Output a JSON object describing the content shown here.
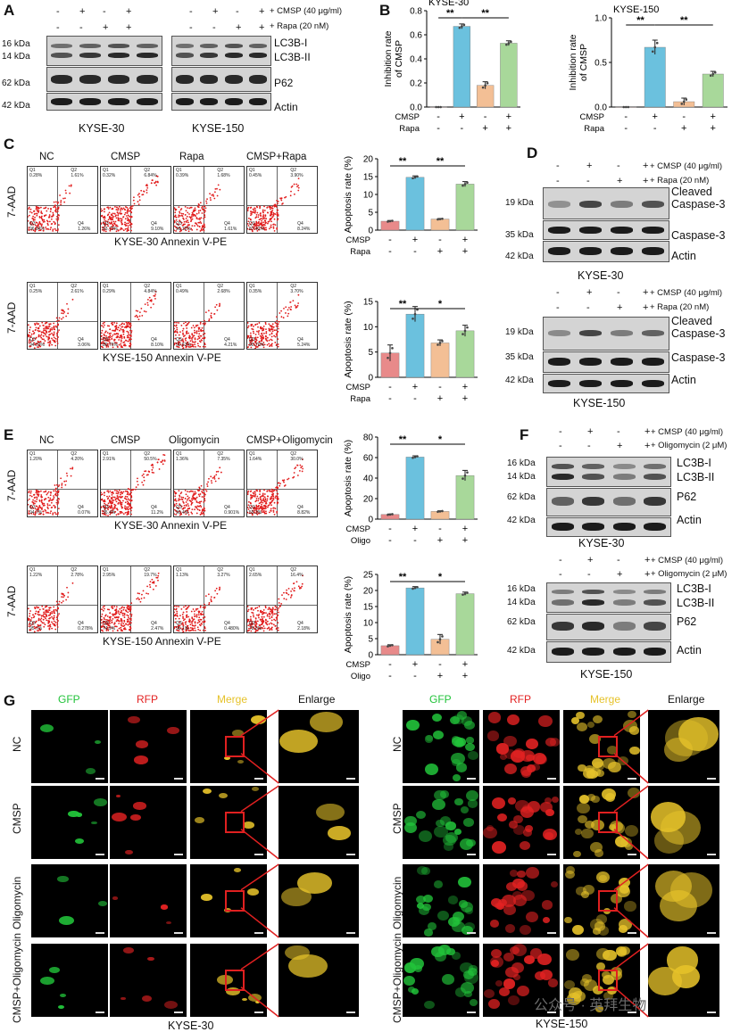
{
  "colors": {
    "nc": "#e88a8a",
    "cmsp": "#6bc1de",
    "rapa": "#f3bf95",
    "combo": "#a8d89a",
    "flow_dot": "#e11b1b",
    "gfp": "#22c33a",
    "rfp": "#e32222",
    "merge": "#e6c22a",
    "zoom": "#e02020"
  },
  "panels": {
    "a": "A",
    "b": "B",
    "c": "C",
    "d": "D",
    "e": "E",
    "f": "F",
    "g": "G"
  },
  "panelA": {
    "cond_labels": [
      "CMSP (40 μg/ml)",
      "Rapa (20 nM)"
    ],
    "cmsp": [
      "-",
      "+",
      "-",
      "+"
    ],
    "rapa": [
      "-",
      "-",
      "+",
      "+"
    ],
    "kda": [
      "16 kDa",
      "14 kDa",
      "62 kDa",
      "42 kDa"
    ],
    "bands": [
      "LC3B-I",
      "LC3B-II",
      "P62",
      "Actin"
    ],
    "lines": [
      "KYSE-30",
      "KYSE-150"
    ]
  },
  "panelB": {
    "charts": [
      {
        "title": "KYSE-30",
        "ylabel": "Inhibition rate of CMSP",
        "ylim": [
          0,
          0.8
        ],
        "ticks": [
          "0.0",
          "0.2",
          "0.4",
          "0.6",
          "0.8"
        ],
        "values": [
          0.0,
          0.67,
          0.18,
          0.53
        ],
        "errors": [
          0.0,
          0.02,
          0.03,
          0.02
        ],
        "sig": [
          "**",
          "**"
        ],
        "row1": "CMSP",
        "row2": "Rapa"
      },
      {
        "title": "KYSE-150",
        "ylabel": "Inhibition rate of CMSP",
        "ylim": [
          0,
          1.0
        ],
        "ticks": [
          "0.0",
          "0.5",
          "1.0"
        ],
        "values": [
          0.0,
          0.67,
          0.06,
          0.37
        ],
        "errors": [
          0.0,
          0.08,
          0.04,
          0.03
        ],
        "sig": [
          "**",
          "**"
        ],
        "row1": "CMSP",
        "row2": "Rapa"
      }
    ]
  },
  "panelC": {
    "headers": [
      "NC",
      "CMSP",
      "Rapa",
      "CMSP+Rapa"
    ],
    "yaxis": "7-AAD",
    "rows": [
      {
        "label": "KYSE-30  Annexin V-PE",
        "quads": [
          [
            "0.28%",
            "1.61%",
            "96.84%",
            "1.26%"
          ],
          [
            "0.32%",
            "6.84%",
            "83.73%",
            "9.10%"
          ],
          [
            "0.39%",
            "1.68%",
            "96.32%",
            "1.61%"
          ],
          [
            "0.45%",
            "3.90%",
            "87.42%",
            "8.24%"
          ]
        ]
      },
      {
        "label": "KYSE-150  Annexin V-PE",
        "quads": [
          [
            "0.25%",
            "2.61%",
            "94.03%",
            "3.06%"
          ],
          [
            "0.29%",
            "4.84%",
            "86.76%",
            "8.10%"
          ],
          [
            "0.49%",
            "2.68%",
            "92.62%",
            "4.21%"
          ],
          [
            "0.35%",
            "3.70%",
            "90.70%",
            "5.24%"
          ]
        ]
      }
    ]
  },
  "panelCbars": [
    {
      "ylabel": "Apoptosis rate (%)",
      "ylim": [
        0,
        20
      ],
      "ticks": [
        "0",
        "5",
        "10",
        "15",
        "20"
      ],
      "values": [
        2.5,
        14.8,
        3.1,
        12.9
      ],
      "errors": [
        0.2,
        0.4,
        0.15,
        0.7
      ],
      "sig": [
        "**",
        "**"
      ],
      "row1": "CMSP",
      "row2": "Rapa"
    },
    {
      "ylabel": "Apoptosis rate (%)",
      "ylim": [
        0,
        15
      ],
      "ticks": [
        "0",
        "5",
        "10",
        "15"
      ],
      "values": [
        4.8,
        12.5,
        6.8,
        9.2
      ],
      "errors": [
        1.6,
        1.5,
        0.6,
        1.1
      ],
      "sig": [
        "**",
        "*"
      ],
      "row1": "CMSP",
      "row2": "Rapa"
    }
  ],
  "panelD": {
    "cond_labels": [
      "CMSP (40 μg/ml)",
      "Rapa (20 nM)"
    ],
    "cmsp": [
      "-",
      "+",
      "-",
      "+"
    ],
    "rapa": [
      "-",
      "-",
      "+",
      "+"
    ],
    "kda": [
      "19 kDa",
      "35 kDa",
      "42 kDa"
    ],
    "bands": [
      "Cleaved Caspase-3",
      "Caspase-3",
      "Actin"
    ],
    "lines": [
      "KYSE-30",
      "KYSE-150"
    ]
  },
  "panelE": {
    "headers": [
      "NC",
      "CMSP",
      "Oligomycin",
      "CMSP+Oligomycin"
    ],
    "yaxis": "7-AAD",
    "rows": [
      {
        "label": "KYSE-30  Annexin V-PE",
        "quads": [
          [
            "1.20%",
            "4.20%",
            "94.7%",
            "0.07%"
          ],
          [
            "2.91%",
            "50.5%",
            "35.4%",
            "11.2%"
          ],
          [
            "1.36%",
            "7.35%",
            "90.4%",
            "0.901%"
          ],
          [
            "1.64%",
            "30.0%",
            "59.3%",
            "8.82%"
          ]
        ]
      },
      {
        "label": "KYSE-150  Annexin V-PE",
        "quads": [
          [
            "1.22%",
            "2.78%",
            "95.7%",
            "0.278%"
          ],
          [
            "2.95%",
            "19.7%",
            "74.9%",
            "2.47%"
          ],
          [
            "1.13%",
            "3.27%",
            "95.1%",
            "0.480%"
          ],
          [
            "2.65%",
            "16.4%",
            "78.6%",
            "2.18%"
          ]
        ]
      }
    ]
  },
  "panelEbars": [
    {
      "ylabel": "Apoptosis rate (%)",
      "ylim": [
        0,
        80
      ],
      "ticks": [
        "0",
        "20",
        "40",
        "60",
        "80"
      ],
      "values": [
        4.5,
        60.5,
        7.5,
        42.5
      ],
      "errors": [
        0.5,
        1.2,
        0.6,
        5.0
      ],
      "sig": [
        "**",
        "*"
      ],
      "row1": "CMSP",
      "row2": "Oligo"
    },
    {
      "ylabel": "Apoptosis rate (%)",
      "ylim": [
        0,
        25
      ],
      "ticks": [
        "0",
        "5",
        "10",
        "15",
        "20",
        "25"
      ],
      "values": [
        2.8,
        20.8,
        4.8,
        19.0
      ],
      "errors": [
        0.3,
        0.4,
        1.5,
        0.5
      ],
      "sig": [
        "**",
        "*"
      ],
      "row1": "CMSP",
      "row2": "Oligo"
    }
  ],
  "panelF": {
    "cond_labels": [
      "CMSP (40 μg/ml)",
      "Oligomycin (2 μM)"
    ],
    "cmsp": [
      "-",
      "+",
      "-",
      "+"
    ],
    "oligo": [
      "-",
      "-",
      "+",
      "+"
    ],
    "kda": [
      "16 kDa",
      "14 kDa",
      "62 kDa",
      "42 kDa"
    ],
    "bands": [
      "LC3B-I",
      "LC3B-II",
      "P62",
      "Actin"
    ],
    "lines": [
      "KYSE-30",
      "KYSE-150"
    ]
  },
  "panelG": {
    "cols": [
      "GFP",
      "RFP",
      "Merge",
      "Enlarge"
    ],
    "rows": [
      "NC",
      "CMSP",
      "Oligomycin",
      "CMSP+Oligomycin"
    ],
    "lines": [
      "KYSE-30",
      "KYSE-150"
    ]
  },
  "watermark": "公众号 · 英拜生物"
}
